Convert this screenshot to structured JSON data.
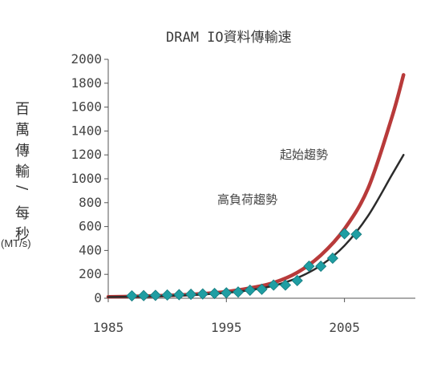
{
  "chart_data": {
    "type": "line",
    "title": "DRAM IO資料傳輸速",
    "ylabel": "百萬傳輸/每秒",
    "ylabel_chars": [
      "百",
      "萬",
      "傳",
      "輸",
      "/",
      "每",
      "秒"
    ],
    "yunit": "(MT/s)",
    "xlabel": "",
    "xlim": [
      1985,
      2011
    ],
    "ylim": [
      0,
      2000
    ],
    "xticks": [
      1985,
      1995,
      2005
    ],
    "yticks": [
      0,
      200,
      400,
      600,
      800,
      1000,
      1200,
      1400,
      1600,
      1800,
      2000
    ],
    "grid": false,
    "annotations": [
      {
        "text": "起始趨勢",
        "x": 2001.5,
        "y": 1180
      },
      {
        "text": "高負荷趨勢",
        "x": 1996.5,
        "y": 820
      }
    ],
    "series": [
      {
        "name": "起始趨勢",
        "kind": "line",
        "color": "#b83a3a",
        "x": [
          1985,
          1987,
          1989,
          1991,
          1993,
          1995,
          1997,
          1999,
          2001,
          2003,
          2005,
          2007,
          2009,
          2010
        ],
        "y": [
          12,
          15,
          20,
          27,
          38,
          55,
          85,
          130,
          215,
          360,
          580,
          920,
          1510,
          1870
        ]
      },
      {
        "name": "高負荷趨勢",
        "kind": "line",
        "color": "#2b2b2b",
        "x": [
          1985,
          1987,
          1989,
          1991,
          1993,
          1995,
          1997,
          1999,
          2001,
          2003,
          2005,
          2007,
          2009,
          2010
        ],
        "y": [
          10,
          13,
          17,
          23,
          32,
          45,
          68,
          105,
          170,
          275,
          440,
          690,
          1030,
          1200
        ]
      },
      {
        "kind": "scatter",
        "marker": "diamond",
        "color": "#1f9ea3",
        "x": [
          1987,
          1988,
          1989,
          1990,
          1991,
          1992,
          1993,
          1994,
          1995,
          1996,
          1997,
          1998,
          1999,
          2000,
          2001,
          2002,
          2003,
          2004,
          2005,
          2006
        ],
        "y": [
          20,
          22,
          24,
          27,
          30,
          33,
          36,
          40,
          45,
          52,
          67,
          75,
          110,
          110,
          148,
          268,
          268,
          335,
          540,
          535
        ]
      }
    ]
  }
}
